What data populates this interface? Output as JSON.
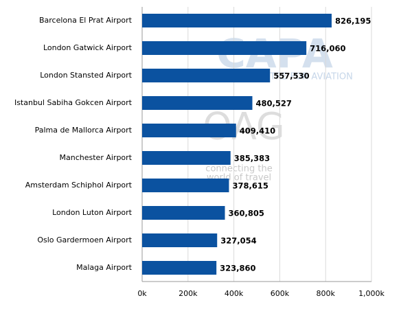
{
  "chart_data": {
    "type": "barh",
    "categories": [
      "Barcelona El Prat Airport",
      "London Gatwick Airport",
      "London Stansted Airport",
      "Istanbul Sabiha Gokcen Airport",
      "Palma de Mallorca Airport",
      "Manchester Airport",
      "Amsterdam Schiphol Airport",
      "London Luton Airport",
      "Oslo Gardermoen Airport",
      "Malaga Airport"
    ],
    "values": [
      826195,
      716060,
      557530,
      480527,
      409410,
      385383,
      378615,
      360805,
      327054,
      323860
    ],
    "value_labels": [
      "826,195",
      "716,060",
      "557,530",
      "480,527",
      "409,410",
      "385,383",
      "378,615",
      "360,805",
      "327,054",
      "323,860"
    ],
    "color": "#0b52a0",
    "xlim": [
      0,
      1000000
    ],
    "xticks": [
      {
        "value": 0,
        "label": "0k"
      },
      {
        "value": 200000,
        "label": "200k"
      },
      {
        "value": 400000,
        "label": "400k"
      },
      {
        "value": 600000,
        "label": "600k"
      },
      {
        "value": 800000,
        "label": "800k"
      },
      {
        "value": 1000000,
        "label": "1,000k"
      }
    ],
    "grid": true,
    "watermarks": [
      "CAPA",
      "CENTRE FOR AVIATION",
      "OAG",
      "connecting the",
      "world of travel"
    ]
  }
}
